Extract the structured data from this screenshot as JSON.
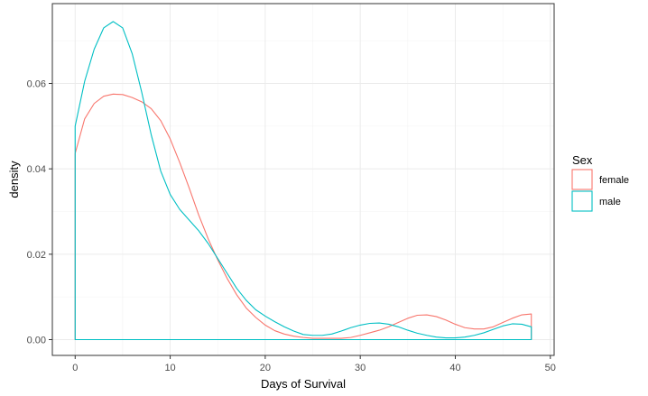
{
  "chart_data": {
    "type": "line",
    "title": "",
    "xlabel": "Days of Survival",
    "ylabel": "density",
    "xlim": [
      -2.4,
      50.4
    ],
    "ylim": [
      -0.0037,
      0.0787
    ],
    "x_ticks": [
      0,
      10,
      20,
      30,
      40,
      50
    ],
    "y_ticks": [
      0.0,
      0.02,
      0.04,
      0.06
    ],
    "x_tick_labels": [
      "0",
      "10",
      "20",
      "30",
      "40",
      "50"
    ],
    "y_tick_labels": [
      "0.00",
      "0.02",
      "0.04",
      "0.06"
    ],
    "grid": true,
    "legend": {
      "title": "Sex",
      "position": "right"
    },
    "series": [
      {
        "name": "female",
        "color": "#F8766D",
        "x": [
          0,
          1,
          2,
          3,
          4,
          5,
          6,
          7,
          8,
          9,
          10,
          11,
          12,
          13,
          14,
          15,
          16,
          17,
          18,
          19,
          20,
          21,
          22,
          23,
          24,
          25,
          26,
          27,
          28,
          29,
          30,
          31,
          32,
          33,
          34,
          35,
          36,
          37,
          38,
          39,
          40,
          41,
          42,
          43,
          44,
          45,
          46,
          47,
          48
        ],
        "values": [
          0.0436,
          0.0517,
          0.0553,
          0.057,
          0.0575,
          0.0574,
          0.0567,
          0.0557,
          0.0541,
          0.0513,
          0.047,
          0.0415,
          0.0355,
          0.0292,
          0.0236,
          0.0187,
          0.0143,
          0.0105,
          0.0074,
          0.0052,
          0.0034,
          0.0021,
          0.0013,
          0.0008,
          0.0005,
          0.0003,
          0.0003,
          0.0003,
          0.0003,
          0.0005,
          0.001,
          0.0016,
          0.0022,
          0.003,
          0.004,
          0.005,
          0.0057,
          0.0058,
          0.0054,
          0.0046,
          0.0036,
          0.0028,
          0.0025,
          0.0025,
          0.003,
          0.004,
          0.005,
          0.0058,
          0.006
        ]
      },
      {
        "name": "male",
        "color": "#00BFC4",
        "x": [
          0,
          1,
          2,
          3,
          4,
          5,
          6,
          7,
          8,
          9,
          10,
          11,
          12,
          13,
          14,
          15,
          16,
          17,
          18,
          19,
          20,
          21,
          22,
          23,
          24,
          25,
          26,
          27,
          28,
          29,
          30,
          31,
          32,
          33,
          34,
          35,
          36,
          37,
          38,
          39,
          40,
          41,
          42,
          43,
          44,
          45,
          46,
          47,
          48
        ],
        "values": [
          0.05,
          0.0605,
          0.068,
          0.073,
          0.0745,
          0.073,
          0.067,
          0.058,
          0.048,
          0.0395,
          0.034,
          0.0305,
          0.028,
          0.0255,
          0.0225,
          0.019,
          0.0155,
          0.012,
          0.0092,
          0.007,
          0.0055,
          0.0042,
          0.003,
          0.002,
          0.0012,
          0.001,
          0.001,
          0.0013,
          0.002,
          0.0028,
          0.0034,
          0.0038,
          0.0039,
          0.0036,
          0.003,
          0.0022,
          0.0015,
          0.001,
          0.0006,
          0.0004,
          0.0004,
          0.0006,
          0.001,
          0.0016,
          0.0024,
          0.0032,
          0.0037,
          0.0036,
          0.003
        ]
      }
    ]
  }
}
